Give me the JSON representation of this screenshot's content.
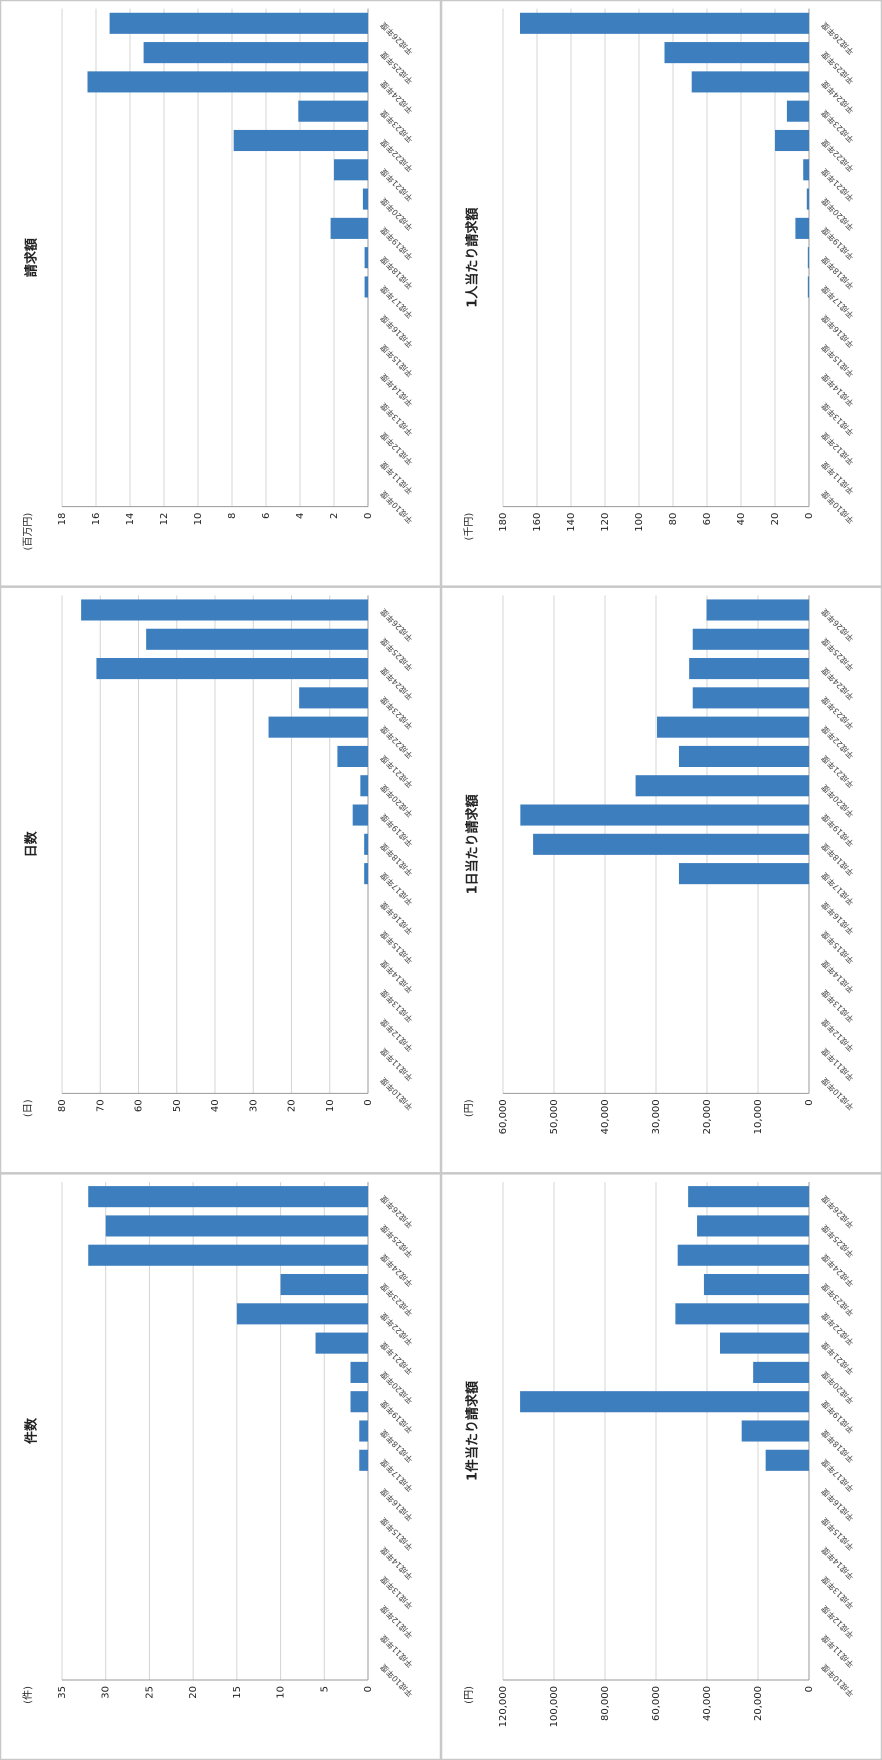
{
  "chart_data": [
    {
      "type": "bar",
      "title": "件数",
      "y_label": "(件)",
      "color": "#3d7ebf",
      "grid": true,
      "categories": [
        "平成10年度",
        "平成11年度",
        "平成12年度",
        "平成13年度",
        "平成14年度",
        "平成15年度",
        "平成16年度",
        "平成17年度",
        "平成18年度",
        "平成19年度",
        "平成20年度",
        "平成21年度",
        "平成22年度",
        "平成23年度",
        "平成24年度",
        "平成25年度",
        "平成26年度"
      ],
      "values": [
        null,
        null,
        null,
        null,
        null,
        null,
        null,
        1,
        1,
        2,
        2,
        6,
        15,
        10,
        32,
        30,
        32
      ],
      "ylim": [
        0,
        35
      ],
      "yticks": [
        0,
        5,
        10,
        15,
        20,
        25,
        30,
        35
      ]
    },
    {
      "type": "bar",
      "title": "日数",
      "y_label": "(日)",
      "color": "#3d7ebf",
      "grid": true,
      "categories": [
        "平成10年度",
        "平成11年度",
        "平成12年度",
        "平成13年度",
        "平成14年度",
        "平成15年度",
        "平成16年度",
        "平成17年度",
        "平成18年度",
        "平成19年度",
        "平成20年度",
        "平成21年度",
        "平成22年度",
        "平成23年度",
        "平成24年度",
        "平成25年度",
        "平成26年度"
      ],
      "values": [
        null,
        null,
        null,
        null,
        null,
        null,
        null,
        1,
        1,
        4,
        2,
        8,
        26,
        18,
        71,
        58,
        75
      ],
      "ylim": [
        0,
        80
      ],
      "yticks": [
        0,
        10,
        20,
        30,
        40,
        50,
        60,
        70,
        80
      ]
    },
    {
      "type": "bar",
      "title": "請求額",
      "y_label": "(百万円)",
      "color": "#3d7ebf",
      "grid": true,
      "categories": [
        "平成10年度",
        "平成11年度",
        "平成12年度",
        "平成13年度",
        "平成14年度",
        "平成15年度",
        "平成16年度",
        "平成17年度",
        "平成18年度",
        "平成19年度",
        "平成20年度",
        "平成21年度",
        "平成22年度",
        "平成23年度",
        "平成24年度",
        "平成25年度",
        "平成26年度"
      ],
      "values": [
        null,
        null,
        null,
        null,
        null,
        null,
        null,
        0.2,
        0.2,
        2.2,
        0.3,
        2.0,
        7.9,
        4.1,
        16.5,
        13.2,
        15.2
      ],
      "ylim": [
        0,
        18
      ],
      "yticks": [
        0,
        2,
        4,
        6,
        8,
        10,
        12,
        14,
        16,
        18
      ]
    },
    {
      "type": "bar",
      "title": "1件当たり請求額",
      "y_label": "(円)",
      "color": "#3d7ebf",
      "grid": true,
      "categories": [
        "平成10年度",
        "平成11年度",
        "平成12年度",
        "平成13年度",
        "平成14年度",
        "平成15年度",
        "平成16年度",
        "平成17年度",
        "平成18年度",
        "平成19年度",
        "平成20年度",
        "平成21年度",
        "平成22年度",
        "平成23年度",
        "平成24年度",
        "平成25年度",
        "平成26年度"
      ],
      "values": [
        null,
        null,
        null,
        null,
        null,
        null,
        null,
        17000,
        26400,
        113300,
        21900,
        34900,
        52400,
        41200,
        51500,
        43900,
        47400
      ],
      "ylim": [
        0,
        120000
      ],
      "yticks": [
        0,
        {
          "value": 20000,
          "label": "20,000"
        },
        {
          "value": 40000,
          "label": "40,000"
        },
        {
          "value": 60000,
          "label": "60,000"
        },
        {
          "value": 80000,
          "label": "80,000"
        },
        {
          "value": 100000,
          "label": "100,000"
        },
        {
          "value": 120000,
          "label": "120,000"
        }
      ]
    },
    {
      "type": "bar",
      "title": "1日当たり請求額",
      "y_label": "(円)",
      "color": "#3d7ebf",
      "grid": true,
      "categories": [
        "平成10年度",
        "平成11年度",
        "平成12年度",
        "平成13年度",
        "平成14年度",
        "平成15年度",
        "平成16年度",
        "平成17年度",
        "平成18年度",
        "平成19年度",
        "平成20年度",
        "平成21年度",
        "平成22年度",
        "平成23年度",
        "平成24年度",
        "平成25年度",
        "平成26年度"
      ],
      "values": [
        null,
        null,
        null,
        null,
        null,
        null,
        null,
        25500,
        54100,
        56600,
        34000,
        25500,
        29800,
        22800,
        23500,
        22800,
        20100
      ],
      "ylim": [
        0,
        60000
      ],
      "yticks": [
        0,
        {
          "value": 10000,
          "label": "10,000"
        },
        {
          "value": 20000,
          "label": "20,000"
        },
        {
          "value": 30000,
          "label": "30,000"
        },
        {
          "value": 40000,
          "label": "40,000"
        },
        {
          "value": 50000,
          "label": "50,000"
        },
        {
          "value": 60000,
          "label": "60,000"
        }
      ]
    },
    {
      "type": "bar",
      "title": "1人当たり請求額",
      "y_label": "(千円)",
      "color": "#3d7ebf",
      "grid": true,
      "categories": [
        "平成10年度",
        "平成11年度",
        "平成12年度",
        "平成13年度",
        "平成14年度",
        "平成15年度",
        "平成16年度",
        "平成17年度",
        "平成18年度",
        "平成19年度",
        "平成20年度",
        "平成21年度",
        "平成22年度",
        "平成23年度",
        "平成24年度",
        "平成25年度",
        "平成26年度"
      ],
      "values": [
        null,
        null,
        null,
        null,
        null,
        null,
        null,
        0.7,
        0.7,
        8,
        1.3,
        3.4,
        20,
        13,
        69,
        85,
        170
      ],
      "ylim": [
        0,
        180
      ],
      "yticks": [
        0,
        20,
        40,
        60,
        80,
        100,
        120,
        140,
        160,
        180
      ]
    }
  ]
}
